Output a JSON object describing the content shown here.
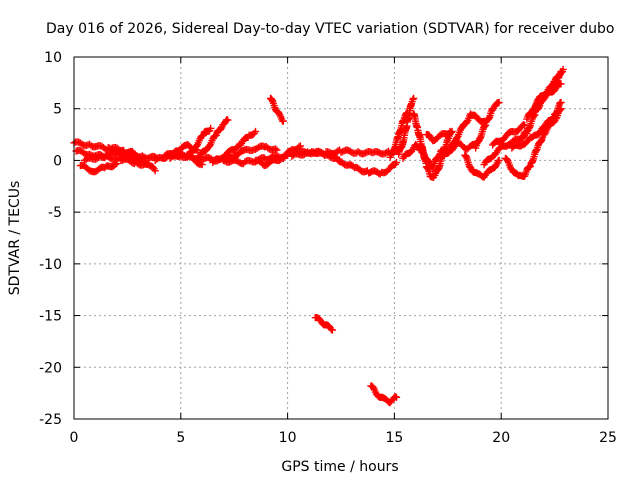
{
  "chart_data": {
    "type": "scatter",
    "title": "Day 016 of 2026, Sidereal Day-to-day VTEC variation (SDTVAR) for receiver dubo",
    "xlabel": "GPS time / hours",
    "ylabel": "SDTVAR / TECUs",
    "xlim": [
      0,
      25
    ],
    "ylim": [
      -25,
      10
    ],
    "xticks": [
      0,
      5,
      10,
      15,
      20,
      25
    ],
    "yticks": [
      10,
      5,
      0,
      -5,
      -10,
      -15,
      -20,
      -25
    ],
    "grid": true,
    "marker": "plus",
    "color": "#ff0000",
    "series": [
      {
        "name": "tracks",
        "segments": [
          [
            [
              0.0,
              1.7
            ],
            [
              0.8,
              1.5
            ],
            [
              1.6,
              1.1
            ],
            [
              2.4,
              0.8
            ],
            [
              3.2,
              0.4
            ],
            [
              3.9,
              0.2
            ]
          ],
          [
            [
              0.1,
              0.9
            ],
            [
              0.8,
              0.6
            ],
            [
              1.5,
              0.3
            ],
            [
              2.2,
              0.1
            ],
            [
              2.9,
              -0.2
            ],
            [
              3.6,
              -0.6
            ],
            [
              3.8,
              -1.0
            ]
          ],
          [
            [
              0.3,
              -0.5
            ],
            [
              0.9,
              -1.0
            ],
            [
              1.5,
              -0.7
            ],
            [
              2.0,
              -0.3
            ]
          ],
          [
            [
              0.5,
              0.0
            ],
            [
              1.3,
              0.4
            ],
            [
              2.0,
              0.7
            ],
            [
              2.8,
              0.2
            ],
            [
              3.5,
              -0.3
            ]
          ],
          [
            [
              1.8,
              1.2
            ],
            [
              2.3,
              0.9
            ],
            [
              2.8,
              0.7
            ]
          ],
          [
            [
              3.8,
              0.0
            ],
            [
              4.6,
              0.6
            ],
            [
              5.3,
              0.4
            ],
            [
              6.0,
              0.2
            ],
            [
              7.0,
              0.0
            ],
            [
              8.0,
              -0.2
            ],
            [
              9.0,
              0.2
            ],
            [
              10.0,
              0.5
            ]
          ],
          [
            [
              4.2,
              0.3
            ],
            [
              4.8,
              1.0
            ],
            [
              5.3,
              1.4
            ],
            [
              5.8,
              1.0
            ]
          ],
          [
            [
              4.5,
              0.2
            ],
            [
              5.0,
              0.5
            ],
            [
              5.5,
              0.2
            ],
            [
              6.0,
              -0.4
            ]
          ],
          [
            [
              5.3,
              0.3
            ],
            [
              5.7,
              1.4
            ],
            [
              6.1,
              2.6
            ],
            [
              6.4,
              3.1
            ]
          ],
          [
            [
              5.9,
              0.4
            ],
            [
              6.3,
              1.4
            ],
            [
              6.7,
              2.6
            ],
            [
              7.0,
              3.6
            ],
            [
              7.2,
              3.9
            ]
          ],
          [
            [
              6.5,
              -0.2
            ],
            [
              6.9,
              0.3
            ],
            [
              7.3,
              0.8
            ],
            [
              7.8,
              1.6
            ],
            [
              8.2,
              2.4
            ],
            [
              8.5,
              2.8
            ]
          ],
          [
            [
              7.0,
              0.0
            ],
            [
              7.5,
              0.5
            ],
            [
              8.0,
              0.9
            ],
            [
              8.5,
              1.2
            ],
            [
              9.0,
              1.3
            ],
            [
              9.5,
              1.0
            ]
          ],
          [
            [
              8.5,
              0.0
            ],
            [
              8.9,
              -0.4
            ],
            [
              9.3,
              -0.1
            ],
            [
              9.8,
              0.3
            ],
            [
              10.2,
              1.0
            ],
            [
              10.6,
              1.4
            ]
          ],
          [
            [
              9.2,
              6.0
            ],
            [
              9.4,
              5.2
            ],
            [
              9.6,
              4.4
            ],
            [
              9.8,
              3.8
            ]
          ],
          [
            [
              10.2,
              0.4
            ],
            [
              11.0,
              0.8
            ],
            [
              11.8,
              0.7
            ],
            [
              12.5,
              0.9
            ],
            [
              13.3,
              0.8
            ],
            [
              14.0,
              0.7
            ],
            [
              14.8,
              0.8
            ],
            [
              15.2,
              0.9
            ]
          ],
          [
            [
              10.5,
              0.7
            ],
            [
              11.2,
              0.9
            ],
            [
              11.8,
              0.4
            ],
            [
              12.3,
              0.3
            ]
          ],
          [
            [
              12.0,
              0.6
            ],
            [
              12.6,
              -0.2
            ],
            [
              13.2,
              -0.8
            ],
            [
              13.8,
              -1.1
            ],
            [
              14.4,
              -1.2
            ],
            [
              14.8,
              -0.8
            ],
            [
              15.1,
              -0.2
            ]
          ],
          [
            [
              11.3,
              -15.2
            ],
            [
              11.6,
              -15.6
            ],
            [
              11.9,
              -16.1
            ],
            [
              12.1,
              -16.4
            ]
          ],
          [
            [
              13.9,
              -21.8
            ],
            [
              14.2,
              -22.6
            ],
            [
              14.5,
              -23.1
            ],
            [
              14.8,
              -23.3
            ],
            [
              15.1,
              -22.9
            ]
          ],
          [
            [
              14.8,
              0.3
            ],
            [
              15.0,
              1.2
            ],
            [
              15.2,
              2.4
            ],
            [
              15.4,
              3.8
            ],
            [
              15.6,
              4.6
            ]
          ],
          [
            [
              15.2,
              0.6
            ],
            [
              15.4,
              1.8
            ],
            [
              15.6,
              3.6
            ],
            [
              15.8,
              5.6
            ],
            [
              15.9,
              6.0
            ]
          ],
          [
            [
              15.4,
              0.2
            ],
            [
              15.7,
              0.8
            ],
            [
              16.0,
              1.4
            ],
            [
              16.2,
              1.0
            ]
          ],
          [
            [
              15.9,
              4.5
            ],
            [
              16.1,
              3.0
            ],
            [
              16.3,
              1.2
            ],
            [
              16.5,
              -0.5
            ],
            [
              16.7,
              -1.6
            ],
            [
              16.9,
              -1.5
            ],
            [
              17.1,
              -0.5
            ],
            [
              17.3,
              0.8
            ],
            [
              17.5,
              2.0
            ],
            [
              17.7,
              2.8
            ]
          ],
          [
            [
              16.2,
              1.5
            ],
            [
              16.4,
              0.6
            ],
            [
              16.6,
              -0.3
            ],
            [
              16.8,
              -0.6
            ],
            [
              17.0,
              0.2
            ],
            [
              17.2,
              1.0
            ]
          ],
          [
            [
              16.5,
              2.5
            ],
            [
              16.8,
              2.0
            ],
            [
              17.2,
              2.4
            ],
            [
              17.6,
              2.8
            ]
          ],
          [
            [
              17.2,
              0.2
            ],
            [
              17.6,
              1.0
            ],
            [
              18.0,
              1.6
            ],
            [
              18.4,
              1.2
            ],
            [
              18.8,
              1.5
            ]
          ],
          [
            [
              17.6,
              1.0
            ],
            [
              17.9,
              2.2
            ],
            [
              18.2,
              3.2
            ],
            [
              18.6,
              4.5
            ],
            [
              18.9,
              4.0
            ],
            [
              19.2,
              3.8
            ]
          ],
          [
            [
              18.3,
              0.5
            ],
            [
              18.6,
              -0.8
            ],
            [
              18.9,
              -1.4
            ],
            [
              19.2,
              -1.5
            ],
            [
              19.6,
              -0.8
            ],
            [
              19.9,
              0.0
            ]
          ],
          [
            [
              18.8,
              1.2
            ],
            [
              19.0,
              2.2
            ],
            [
              19.3,
              3.6
            ],
            [
              19.6,
              5.0
            ],
            [
              19.9,
              5.6
            ]
          ],
          [
            [
              19.2,
              -0.4
            ],
            [
              19.6,
              0.5
            ],
            [
              20.0,
              1.2
            ],
            [
              20.4,
              1.7
            ],
            [
              20.8,
              2.0
            ],
            [
              21.2,
              2.6
            ]
          ],
          [
            [
              19.6,
              1.5
            ],
            [
              20.0,
              2.0
            ],
            [
              20.4,
              2.6
            ],
            [
              20.8,
              3.0
            ],
            [
              21.1,
              3.4
            ]
          ],
          [
            [
              20.2,
              0.2
            ],
            [
              20.5,
              -0.8
            ],
            [
              20.8,
              -1.6
            ],
            [
              21.1,
              -1.4
            ],
            [
              21.4,
              -0.3
            ],
            [
              21.7,
              1.2
            ],
            [
              22.0,
              2.6
            ],
            [
              22.3,
              3.4
            ],
            [
              22.6,
              4.2
            ],
            [
              22.8,
              5.0
            ]
          ],
          [
            [
              20.5,
              1.2
            ],
            [
              21.0,
              1.6
            ],
            [
              21.5,
              2.2
            ],
            [
              22.0,
              3.2
            ],
            [
              22.5,
              4.4
            ],
            [
              22.8,
              5.6
            ]
          ],
          [
            [
              21.0,
              2.2
            ],
            [
              21.3,
              3.2
            ],
            [
              21.6,
              4.6
            ],
            [
              21.9,
              5.8
            ],
            [
              22.2,
              6.6
            ],
            [
              22.5,
              7.6
            ],
            [
              22.8,
              8.6
            ]
          ],
          [
            [
              21.2,
              4.0
            ],
            [
              21.5,
              5.0
            ],
            [
              21.8,
              6.0
            ],
            [
              22.1,
              6.6
            ],
            [
              22.4,
              7.2
            ],
            [
              22.7,
              8.0
            ],
            [
              22.9,
              8.8
            ]
          ],
          [
            [
              21.6,
              5.2
            ],
            [
              21.9,
              5.9
            ],
            [
              22.2,
              6.4
            ],
            [
              22.5,
              6.9
            ],
            [
              22.8,
              7.4
            ]
          ]
        ]
      }
    ]
  }
}
